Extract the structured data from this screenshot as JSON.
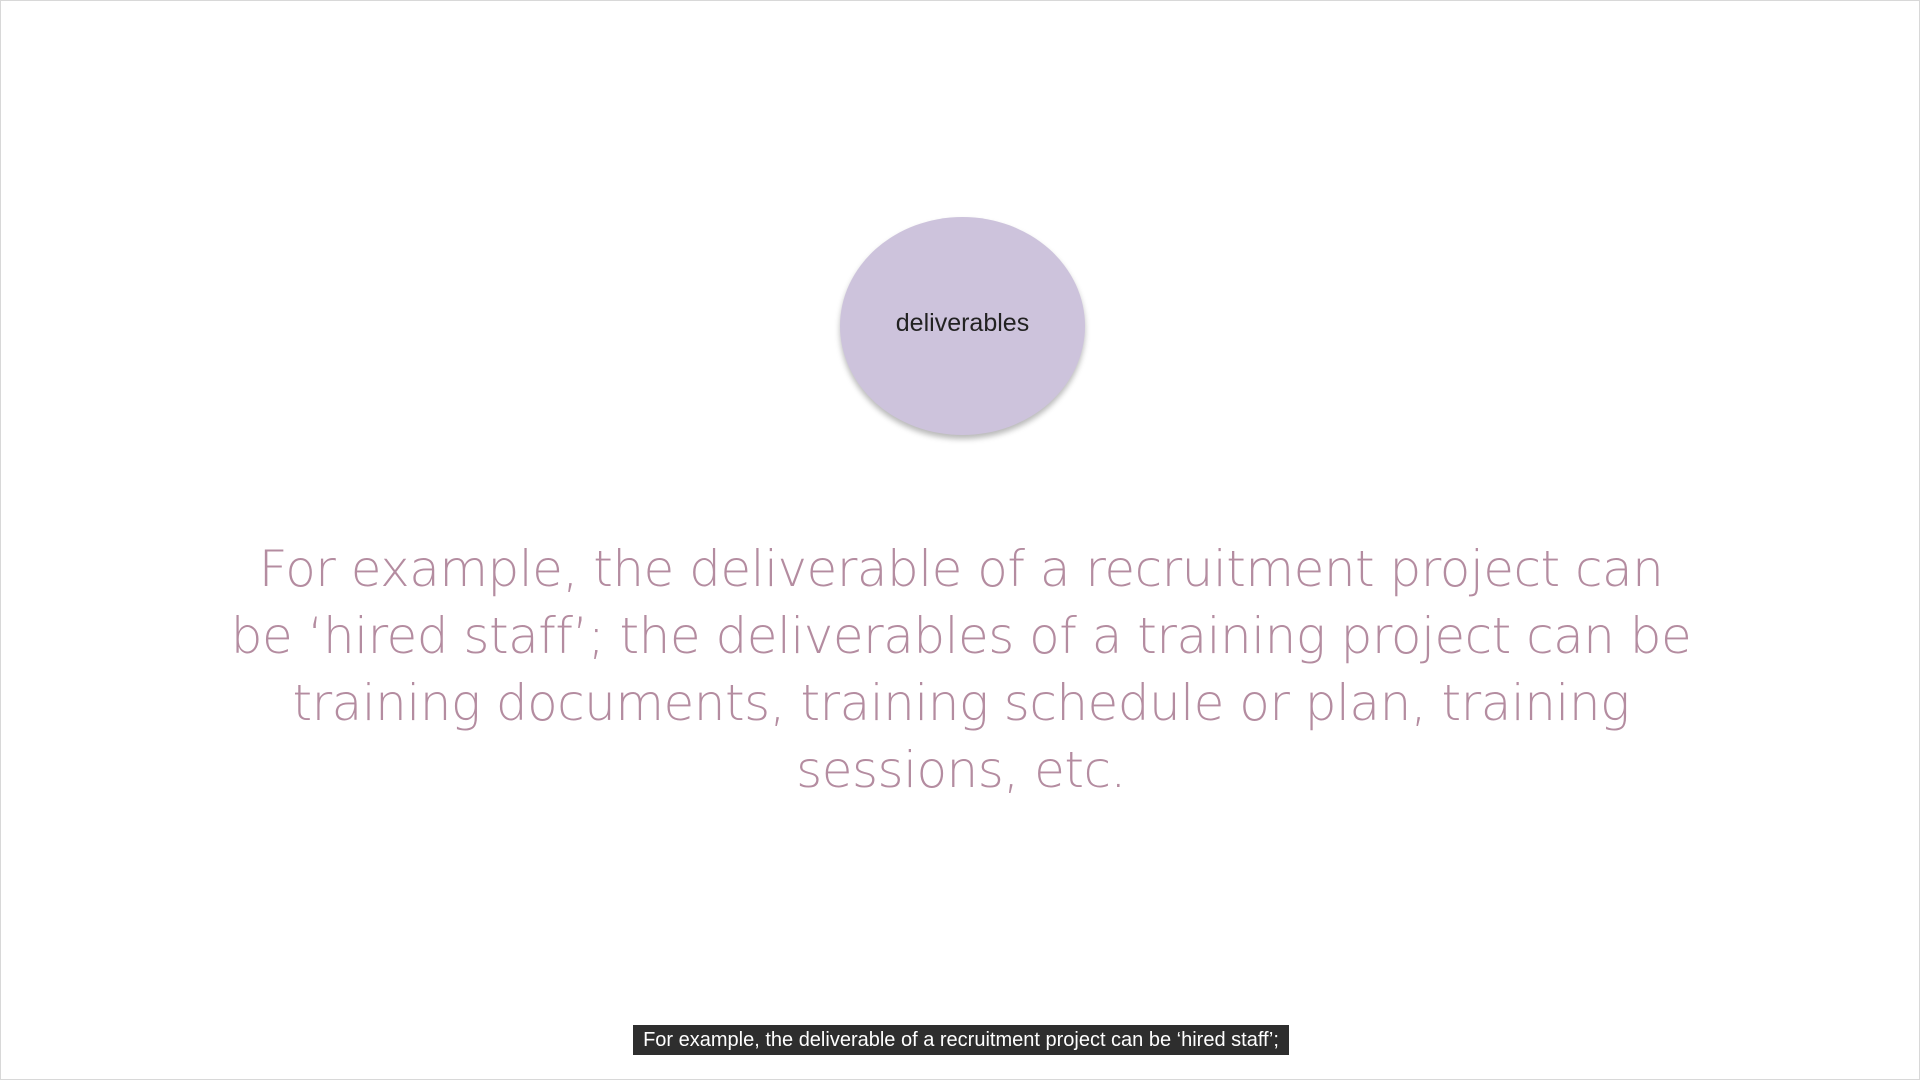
{
  "slide": {
    "circle_label": "deliverables",
    "body_lines": [
      "For example, the deliverable of a recruitment project can",
      "be ‘hired staff’; the deliverables of a training project can be",
      "training documents, training schedule or plan, training",
      "sessions, etc."
    ]
  },
  "caption": {
    "text": "For example, the deliverable of a recruitment project can be ‘hired staff’;"
  },
  "colors": {
    "circle_fill": "#cdc3dc",
    "body_text": "#b48ca0",
    "caption_bg": "#1c1c1c"
  }
}
